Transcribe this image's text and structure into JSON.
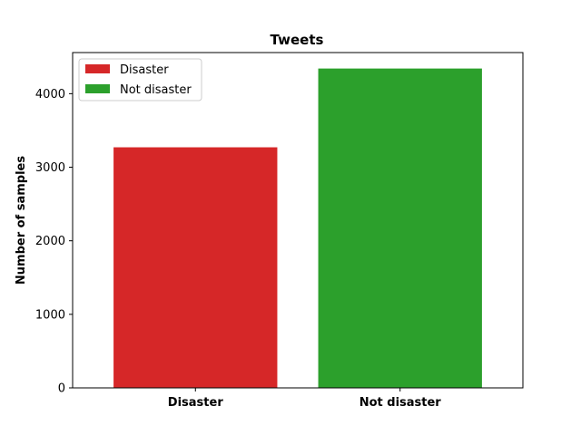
{
  "chart_data": {
    "type": "bar",
    "title": "Tweets",
    "xlabel": "",
    "ylabel": "Number of samples",
    "categories": [
      "Disaster",
      "Not disaster"
    ],
    "values": [
      3271,
      4342
    ],
    "colors": [
      "#d62728",
      "#2ca02c"
    ],
    "ylim": [
      0,
      4559
    ],
    "yticks": [
      0,
      1000,
      2000,
      3000,
      4000
    ],
    "legend": {
      "placement": "top-left",
      "entries": [
        {
          "label": "Disaster",
          "color": "#d62728"
        },
        {
          "label": "Not disaster",
          "color": "#2ca02c"
        }
      ]
    },
    "grid": false
  }
}
